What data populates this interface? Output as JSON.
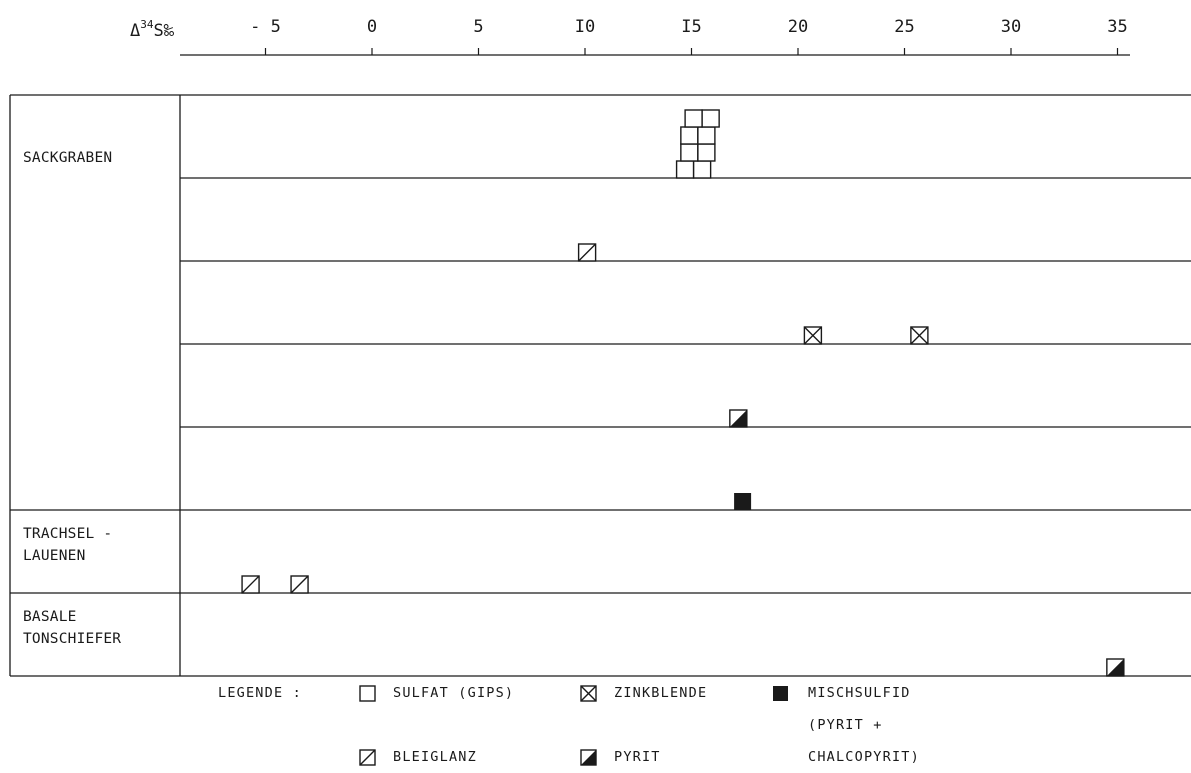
{
  "chart_data": {
    "type": "scatter",
    "axis": {
      "label_main": "Δ",
      "label_sup": "34",
      "label_rest": "S‰",
      "ticks": [
        -5,
        0,
        5,
        10,
        15,
        20,
        25,
        30,
        35
      ],
      "tick_labels": [
        "- 5",
        "0",
        "5",
        "I0",
        "I5",
        "20",
        "25",
        "30",
        "35"
      ],
      "xlim": [
        -8,
        38
      ]
    },
    "groups": [
      {
        "label_lines": [
          "SACKGRABEN"
        ],
        "rows": 5
      },
      {
        "label_lines": [
          "TRACHSEL -",
          "LAUENEN"
        ],
        "rows": 1
      },
      {
        "label_lines": [
          "BASALE",
          "TONSCHIEFER"
        ],
        "rows": 1
      }
    ],
    "series": [
      {
        "name": "SULFAT (GIPS)",
        "marker": "open",
        "row": 0,
        "points": [
          {
            "x": 14.3,
            "level": 0
          },
          {
            "x": 15.1,
            "level": 0
          },
          {
            "x": 14.5,
            "level": 1
          },
          {
            "x": 15.3,
            "level": 1
          },
          {
            "x": 14.5,
            "level": 2
          },
          {
            "x": 15.3,
            "level": 2
          },
          {
            "x": 14.7,
            "level": 3
          },
          {
            "x": 15.5,
            "level": 3
          }
        ]
      },
      {
        "name": "BLEIGLANZ",
        "marker": "slash",
        "row": 1,
        "points": [
          {
            "x": 9.7,
            "level": 0
          }
        ]
      },
      {
        "name": "ZINKBLENDE",
        "marker": "cross",
        "row": 2,
        "points": [
          {
            "x": 20.3,
            "level": 0
          },
          {
            "x": 25.3,
            "level": 0
          }
        ]
      },
      {
        "name": "PYRIT",
        "marker": "half",
        "row": 3,
        "points": [
          {
            "x": 16.8,
            "level": 0
          }
        ]
      },
      {
        "name": "MISCHSULFID",
        "marker": "filled",
        "row": 4,
        "points": [
          {
            "x": 17.0,
            "level": 0
          }
        ]
      },
      {
        "name": "BLEIGLANZ",
        "marker": "slash",
        "row": 5,
        "points": [
          {
            "x": -6.1,
            "level": 0
          },
          {
            "x": -3.8,
            "level": 0
          }
        ]
      },
      {
        "name": "PYRIT",
        "marker": "half",
        "row": 6,
        "points": [
          {
            "x": 34.5,
            "level": 0
          }
        ]
      }
    ],
    "legend": {
      "title": "LEGENDE :",
      "placement": "bottom",
      "items": [
        {
          "marker": "open",
          "lines": [
            "SULFAT (GIPS)"
          ]
        },
        {
          "marker": "cross",
          "lines": [
            "ZINKBLENDE"
          ]
        },
        {
          "marker": "filled",
          "lines": [
            "MISCHSULFID",
            "(PYRIT +",
            "CHALCOPYRIT)"
          ]
        },
        {
          "marker": "slash",
          "lines": [
            "BLEIGLANZ"
          ]
        },
        {
          "marker": "half",
          "lines": [
            "PYRIT"
          ]
        }
      ]
    }
  }
}
